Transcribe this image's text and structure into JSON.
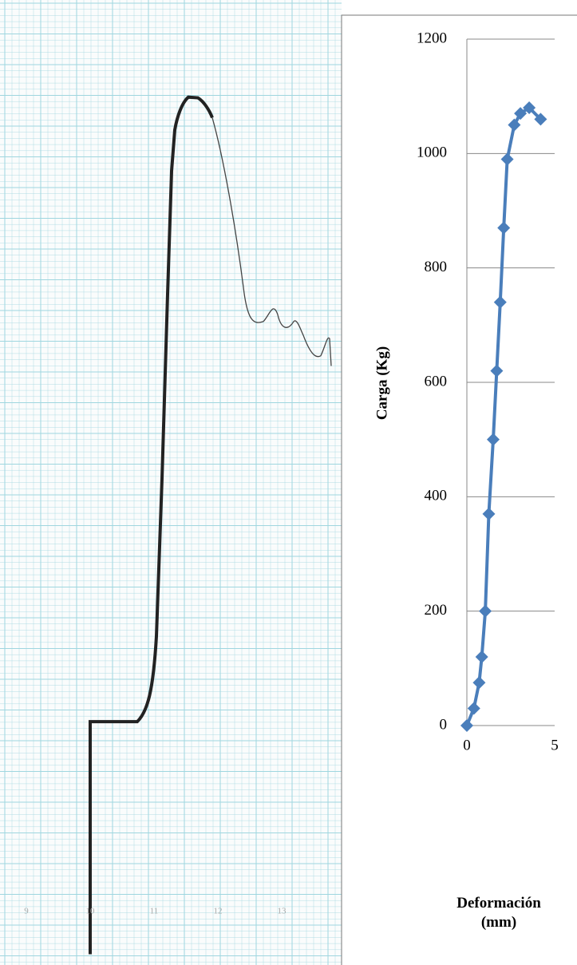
{
  "scan": {
    "axis_labels": [
      "9",
      "10",
      "11",
      "12",
      "13"
    ]
  },
  "chart_data": {
    "type": "line",
    "x_label": "Deformación (mm)",
    "y_label": "Carga (Kg)",
    "xlim": [
      0,
      5
    ],
    "xticks": [
      0,
      5
    ],
    "ylim": [
      0,
      1200
    ],
    "yticks": [
      0,
      200,
      400,
      600,
      800,
      1000,
      1200
    ],
    "grid": true,
    "series": [
      {
        "color": "#4a7ebb",
        "x": [
          0,
          0.4,
          0.7,
          0.85,
          1.05,
          1.25,
          1.5,
          1.7,
          1.9,
          2.1,
          2.3,
          2.7,
          3.05,
          3.55,
          4.2
        ],
        "values": [
          0,
          30,
          75,
          120,
          200,
          370,
          500,
          620,
          740,
          870,
          990,
          1050,
          1070,
          1080,
          1060
        ]
      }
    ]
  }
}
